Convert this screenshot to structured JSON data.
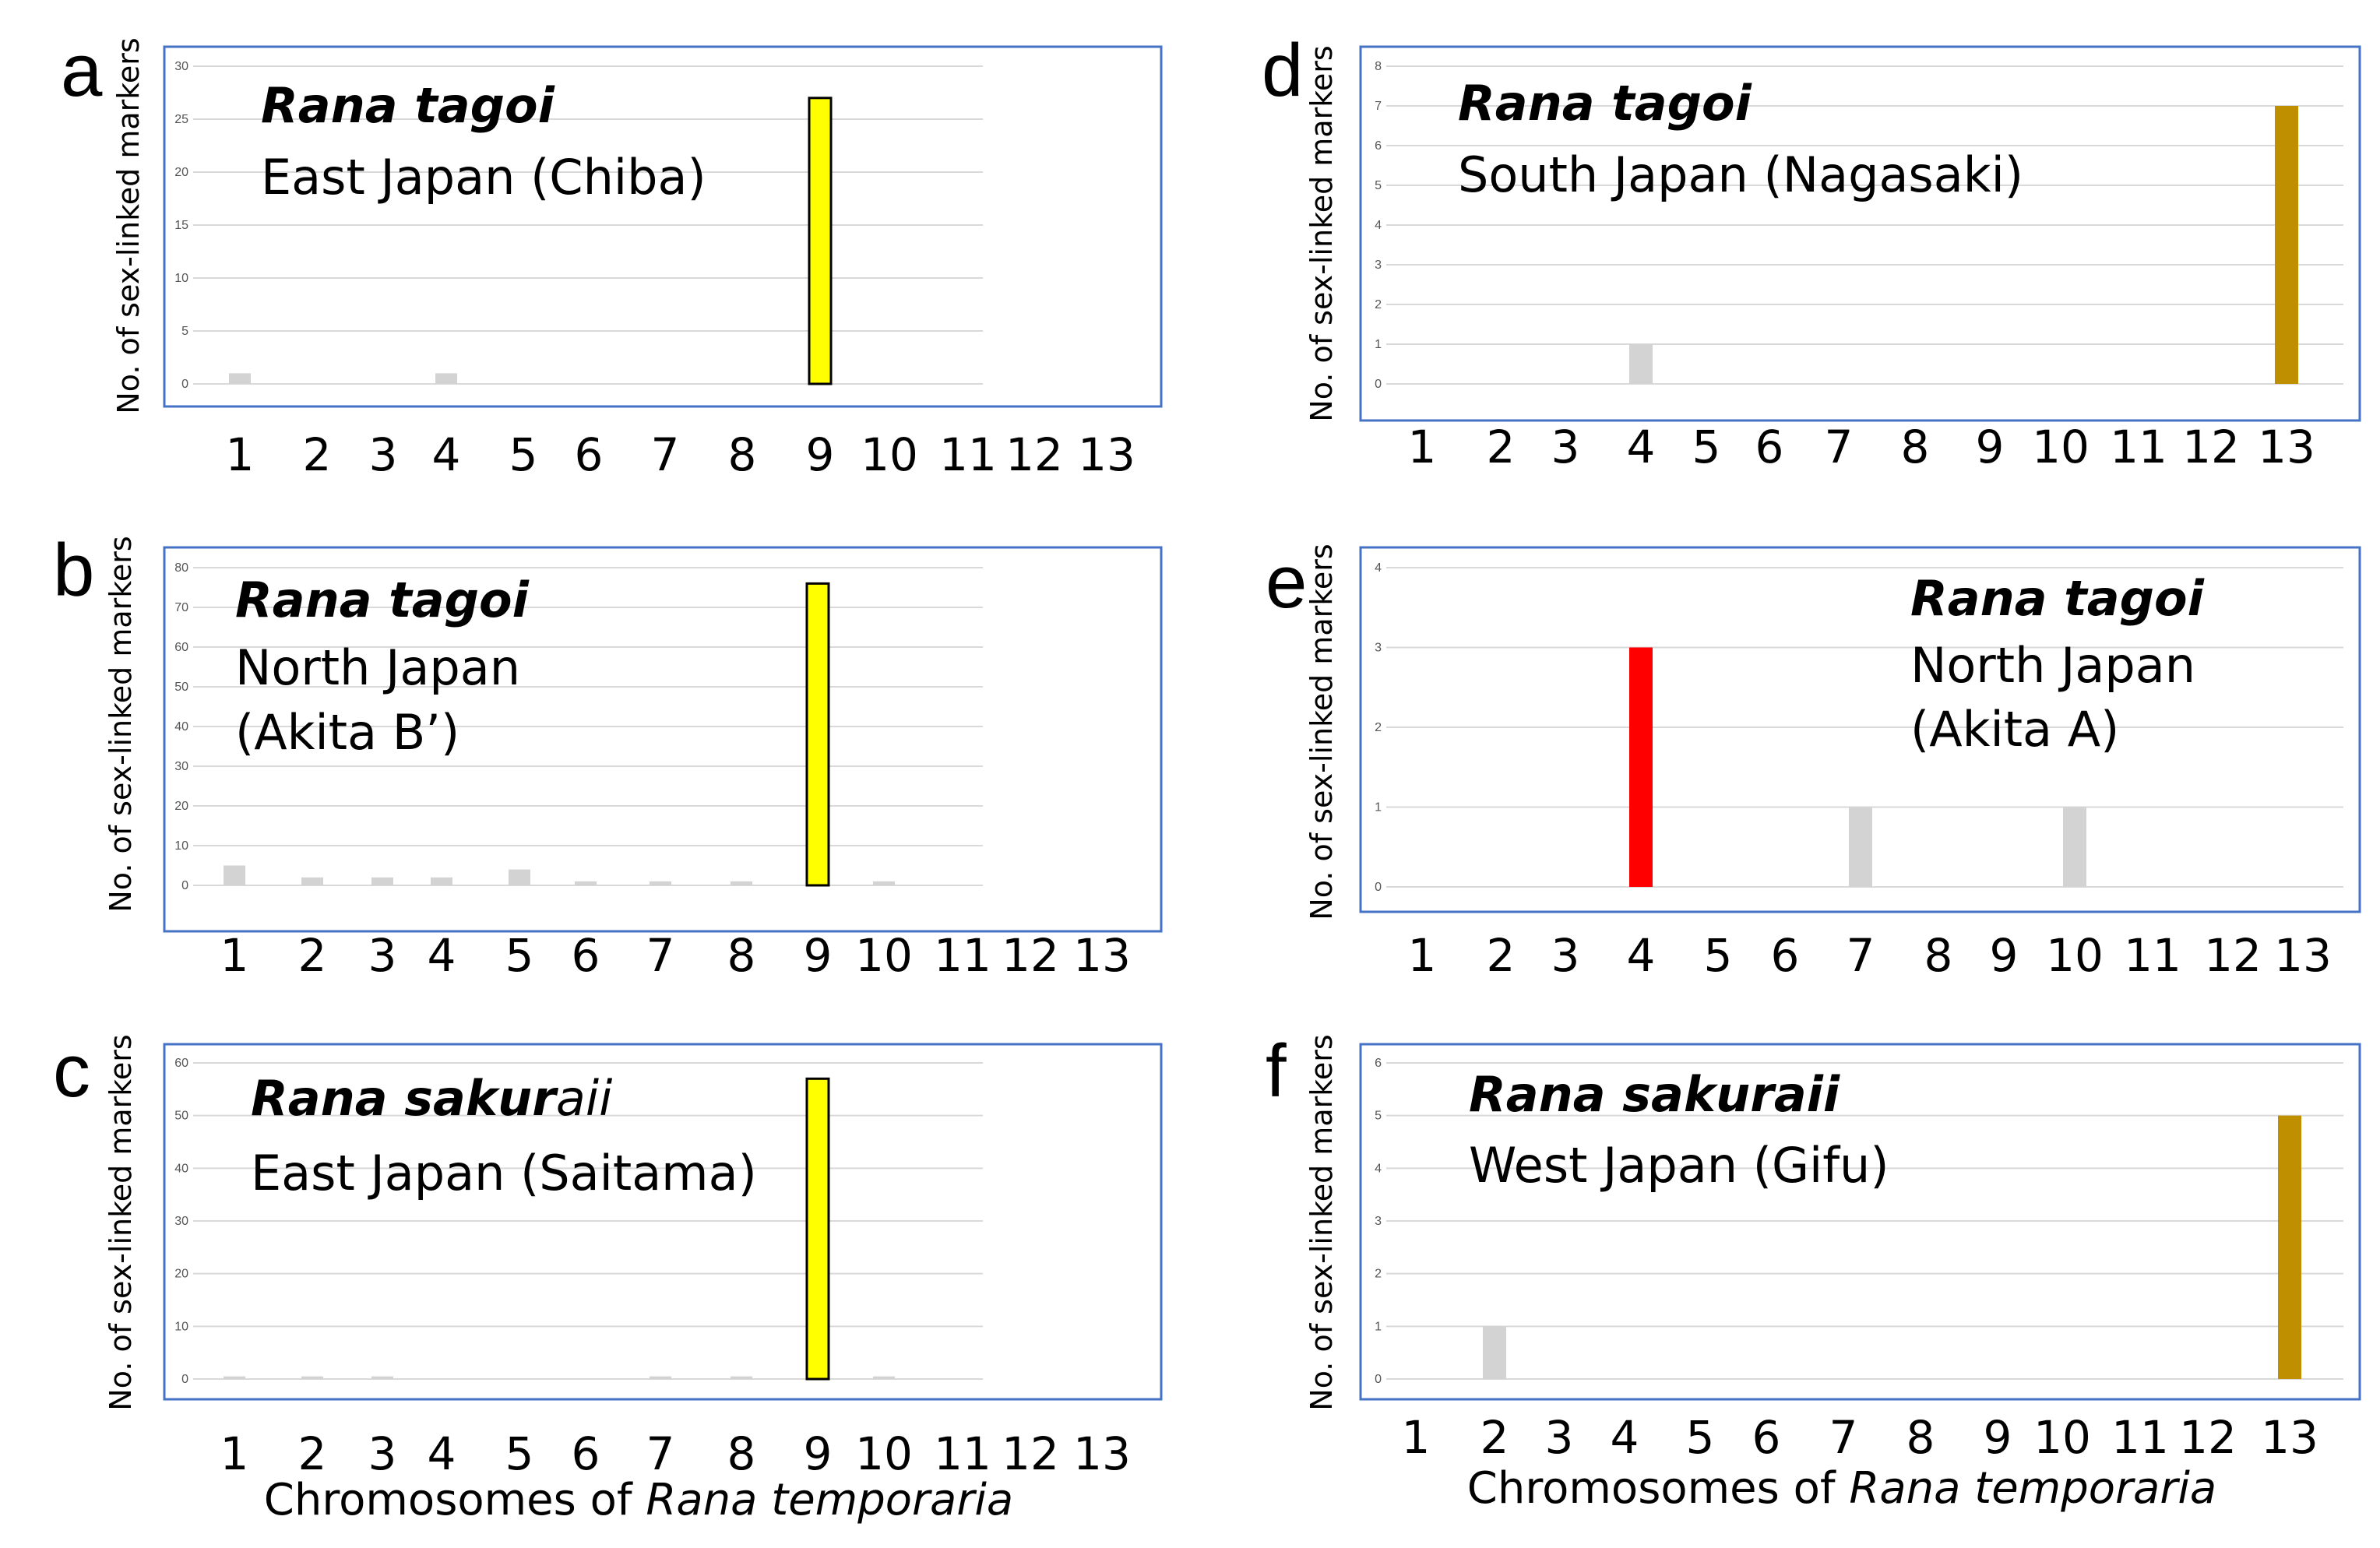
{
  "figure": {
    "x_axis_title_prefix": "Chromosomes of",
    "x_axis_title_species": "Rana temporaria"
  },
  "colors": {
    "frame": "#4472c4",
    "grid": "#d9d9d9",
    "minor_bar": "#d3d3d3",
    "yellow": "#ffff00",
    "red": "#ff0000",
    "gold": "#bf8f00"
  },
  "chart_data": [
    {
      "panel": "a",
      "type": "bar",
      "species": "Rana tagoi",
      "location_lines": [
        "East Japan (Chiba)"
      ],
      "ylabel": "No. of sex-linked markers",
      "xlabel": "Chromosomes of Rana temporaria",
      "categories": [
        "1",
        "2",
        "3",
        "4",
        "5",
        "6",
        "7",
        "8",
        "9",
        "10",
        "11",
        "12",
        "13"
      ],
      "values": [
        1,
        0,
        0,
        1,
        0,
        0,
        0,
        0,
        27,
        0,
        0,
        0,
        0
      ],
      "highlight_index": 8,
      "highlight_color": "#ffff00",
      "highlight_outline": true,
      "ylim": [
        0,
        30
      ],
      "yticks": [
        0,
        5,
        10,
        15,
        20,
        25,
        30
      ]
    },
    {
      "panel": "b",
      "type": "bar",
      "species": "Rana tagoi",
      "location_lines": [
        "North Japan",
        "(Akita B’)"
      ],
      "ylabel": "No. of sex-linked markers",
      "xlabel": "Chromosomes of Rana temporaria",
      "categories": [
        "1",
        "2",
        "3",
        "4",
        "5",
        "6",
        "7",
        "8",
        "9",
        "10",
        "11",
        "12",
        "13"
      ],
      "values": [
        5,
        2,
        2,
        2,
        4,
        1,
        1,
        1,
        76,
        1,
        0,
        0,
        0
      ],
      "highlight_index": 8,
      "highlight_color": "#ffff00",
      "highlight_outline": true,
      "ylim": [
        0,
        80
      ],
      "yticks": [
        0,
        10,
        20,
        30,
        40,
        50,
        60,
        70,
        80
      ]
    },
    {
      "panel": "c",
      "type": "bar",
      "species": "Rana sakur",
      "species_suffix": "aii",
      "location_lines": [
        "East Japan (Saitama)"
      ],
      "ylabel": "No. of sex-linked markers",
      "xlabel": "Chromosomes of Rana temporaria",
      "categories": [
        "1",
        "2",
        "3",
        "4",
        "5",
        "6",
        "7",
        "8",
        "9",
        "10",
        "11",
        "12",
        "13"
      ],
      "values": [
        0.5,
        0.5,
        0.5,
        0,
        0,
        0,
        0.5,
        0.5,
        57,
        0.5,
        0,
        0,
        0
      ],
      "highlight_index": 8,
      "highlight_color": "#ffff00",
      "highlight_outline": true,
      "ylim": [
        0,
        60
      ],
      "yticks": [
        0,
        10,
        20,
        30,
        40,
        50,
        60
      ]
    },
    {
      "panel": "d",
      "type": "bar",
      "species": "Rana tagoi",
      "location_lines": [
        "South Japan (Nagasaki)"
      ],
      "ylabel": "No. of sex-linked markers",
      "xlabel": "Chromosomes of Rana temporaria",
      "categories": [
        "1",
        "2",
        "3",
        "4",
        "5",
        "6",
        "7",
        "8",
        "9",
        "10",
        "11",
        "12",
        "13"
      ],
      "values": [
        0,
        0,
        0,
        1,
        0,
        0,
        0,
        0,
        0,
        0,
        0,
        0,
        7
      ],
      "highlight_index": 12,
      "highlight_color": "#bf8f00",
      "highlight_outline": false,
      "ylim": [
        0,
        8
      ],
      "yticks": [
        0,
        1,
        2,
        3,
        4,
        5,
        6,
        7,
        8
      ]
    },
    {
      "panel": "e",
      "type": "bar",
      "species": "Rana tagoi",
      "location_lines": [
        "North Japan",
        "(Akita A)"
      ],
      "ylabel": "No. of sex-linked markers",
      "xlabel": "Chromosomes of Rana temporaria",
      "categories": [
        "1",
        "2",
        "3",
        "4",
        "5",
        "6",
        "7",
        "8",
        "9",
        "10",
        "11",
        "12",
        "13"
      ],
      "values": [
        0,
        0,
        0,
        3,
        0,
        0,
        1,
        0,
        0,
        1,
        0,
        0,
        0
      ],
      "highlight_index": 3,
      "highlight_color": "#ff0000",
      "highlight_outline": false,
      "ylim": [
        0,
        4
      ],
      "yticks": [
        0,
        1,
        2,
        3,
        4
      ]
    },
    {
      "panel": "f",
      "type": "bar",
      "species": "Rana sakuraii",
      "location_lines": [
        "West Japan (Gifu)"
      ],
      "ylabel": "No. of sex-linked markers",
      "xlabel": "Chromosomes of Rana temporaria",
      "categories": [
        "1",
        "2",
        "3",
        "4",
        "5",
        "6",
        "7",
        "8",
        "9",
        "10",
        "11",
        "12",
        "13"
      ],
      "values": [
        0,
        1,
        0,
        0,
        0,
        0,
        0,
        0,
        0,
        0,
        0,
        0,
        5
      ],
      "highlight_index": 12,
      "highlight_color": "#bf8f00",
      "highlight_outline": false,
      "ylim": [
        0,
        6
      ],
      "yticks": [
        0,
        1,
        2,
        3,
        4,
        5,
        6
      ]
    }
  ]
}
